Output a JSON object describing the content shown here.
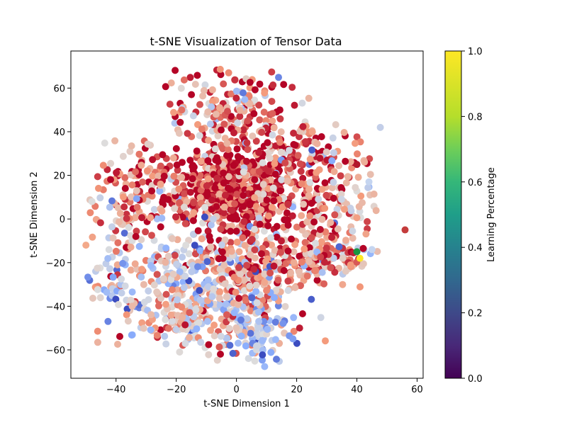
{
  "chart_data": {
    "type": "scatter",
    "title": "t-SNE Visualization of Tensor Data",
    "xlabel": "t-SNE Dimension 1",
    "ylabel": "t-SNE Dimension 2",
    "xlim": [
      -55,
      62
    ],
    "ylim": [
      -73,
      77
    ],
    "xticks": [
      -40,
      -20,
      0,
      20,
      40,
      60
    ],
    "yticks": [
      -60,
      -40,
      -20,
      0,
      20,
      40,
      60
    ],
    "grid": false,
    "colorbar": {
      "label": "Learning Percentage",
      "range": [
        0.0,
        1.0
      ],
      "ticks": [
        "0.0",
        "0.2",
        "0.4",
        "0.6",
        "0.8",
        "1.0"
      ],
      "colormap": "viridis"
    },
    "point_colormap": "coolwarm",
    "clusters": [
      {
        "cx": -2,
        "cy": 14,
        "sx": 9,
        "sy": 9,
        "n": 380,
        "v": 0.93
      },
      {
        "cx": 6,
        "cy": 8,
        "sx": 16,
        "sy": 14,
        "n": 380,
        "v": 0.85
      },
      {
        "cx": -4,
        "cy": 52,
        "sx": 8,
        "sy": 10,
        "n": 120,
        "v": 0.82
      },
      {
        "cx": 8,
        "cy": 40,
        "sx": 10,
        "sy": 12,
        "n": 100,
        "v": 0.78
      },
      {
        "cx": -30,
        "cy": 16,
        "sx": 7,
        "sy": 10,
        "n": 110,
        "v": 0.82
      },
      {
        "cx": -38,
        "cy": 0,
        "sx": 5,
        "sy": 14,
        "n": 60,
        "v": 0.65
      },
      {
        "cx": -15,
        "cy": -25,
        "sx": 11,
        "sy": 10,
        "n": 220,
        "v": 0.5
      },
      {
        "cx": -18,
        "cy": -47,
        "sx": 8,
        "sy": 6,
        "n": 110,
        "v": 0.6
      },
      {
        "cx": 6,
        "cy": -55,
        "sx": 6,
        "sy": 6,
        "n": 80,
        "v": 0.45
      },
      {
        "cx": 8,
        "cy": -25,
        "sx": 9,
        "sy": 10,
        "n": 180,
        "v": 0.7
      },
      {
        "cx": 30,
        "cy": -18,
        "sx": 7,
        "sy": 6,
        "n": 140,
        "v": 0.75
      },
      {
        "cx": 35,
        "cy": 8,
        "sx": 7,
        "sy": 12,
        "n": 90,
        "v": 0.68
      },
      {
        "cx": -42,
        "cy": -30,
        "sx": 4,
        "sy": 10,
        "n": 50,
        "v": 0.45
      },
      {
        "cx": 25,
        "cy": 30,
        "sx": 6,
        "sy": 8,
        "n": 60,
        "v": 0.8
      },
      {
        "cx": 2,
        "cy": -42,
        "sx": 10,
        "sy": 6,
        "n": 100,
        "v": 0.45
      }
    ],
    "highlight_points": [
      {
        "x": 40,
        "y": -15,
        "color": "#1a9641"
      },
      {
        "x": 41,
        "y": -18,
        "color": "#fde725"
      },
      {
        "x": 56,
        "y": -5,
        "color": "#c43c3c"
      },
      {
        "x": -48,
        "y": 8,
        "color": "#dcdcdc"
      },
      {
        "x": 40,
        "y": 25,
        "color": "#b2182b"
      },
      {
        "x": 44,
        "y": 17,
        "color": "#c5d5f0"
      },
      {
        "x": 45,
        "y": -14,
        "color": "#c5d5f0"
      },
      {
        "x": -50,
        "y": -12,
        "color": "#f3a98a"
      }
    ]
  }
}
